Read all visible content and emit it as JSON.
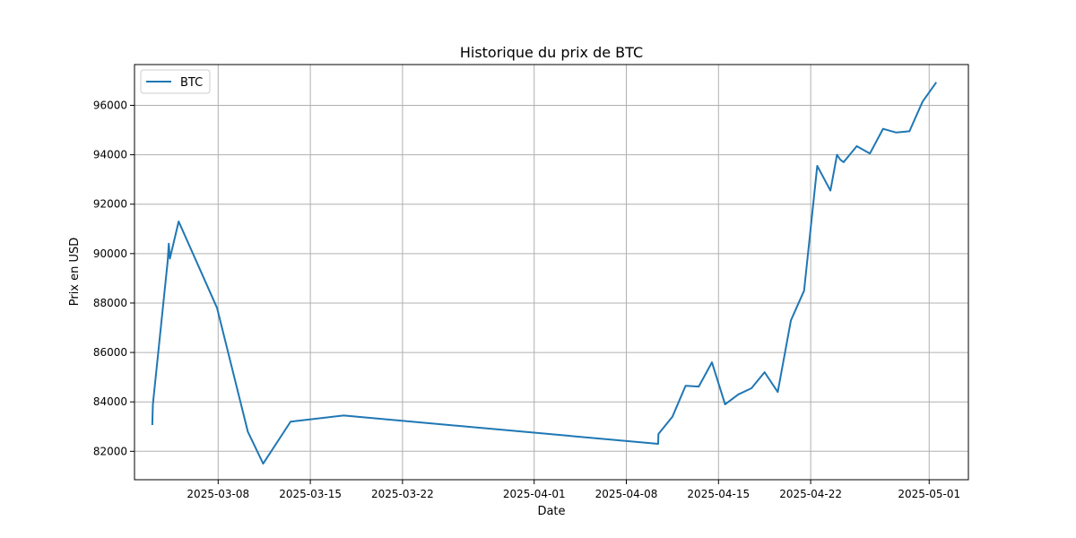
{
  "chart_data": {
    "type": "line",
    "title": "Historique du prix de BTC",
    "xlabel": "Date",
    "ylabel": "Prix en USD",
    "grid": true,
    "legend": {
      "placement": "top-left"
    },
    "xlim": [
      "2025-03-01T15:30",
      "2025-05-03T23:30"
    ],
    "ylim": [
      80850,
      97650
    ],
    "x_ticks": [
      "2025-03-08",
      "2025-03-15",
      "2025-03-22",
      "2025-04-01",
      "2025-04-08",
      "2025-04-15",
      "2025-04-22",
      "2025-05-01"
    ],
    "y_ticks": [
      82000,
      84000,
      86000,
      88000,
      90000,
      92000,
      94000,
      96000
    ],
    "series": [
      {
        "name": "BTC",
        "color": "#1f77b4",
        "points": [
          {
            "x": "2025-03-03T00:00",
            "y": 83100
          },
          {
            "x": "2025-03-03T01:00",
            "y": 83900
          },
          {
            "x": "2025-03-04T04:00",
            "y": 89700
          },
          {
            "x": "2025-03-04T06:00",
            "y": 90400
          },
          {
            "x": "2025-03-04T08:00",
            "y": 89800
          },
          {
            "x": "2025-03-05T00:00",
            "y": 91300
          },
          {
            "x": "2025-03-07T22:00",
            "y": 87800
          },
          {
            "x": "2025-03-10T06:00",
            "y": 82800
          },
          {
            "x": "2025-03-11T10:00",
            "y": 81500
          },
          {
            "x": "2025-03-13T12:00",
            "y": 83200
          },
          {
            "x": "2025-03-17T13:00",
            "y": 83450
          },
          {
            "x": "2025-04-10T10:00",
            "y": 82300
          },
          {
            "x": "2025-04-10T10:30",
            "y": 82700
          },
          {
            "x": "2025-04-11T12:00",
            "y": 83400
          },
          {
            "x": "2025-04-12T12:00",
            "y": 84650
          },
          {
            "x": "2025-04-13T12:00",
            "y": 84620
          },
          {
            "x": "2025-04-14T12:00",
            "y": 85600
          },
          {
            "x": "2025-04-15T12:00",
            "y": 83900
          },
          {
            "x": "2025-04-16T12:00",
            "y": 84300
          },
          {
            "x": "2025-04-17T12:00",
            "y": 84550
          },
          {
            "x": "2025-04-18T12:00",
            "y": 85200
          },
          {
            "x": "2025-04-19T12:00",
            "y": 84400
          },
          {
            "x": "2025-04-20T12:00",
            "y": 87300
          },
          {
            "x": "2025-04-21T12:00",
            "y": 88500
          },
          {
            "x": "2025-04-22T12:00",
            "y": 93550
          },
          {
            "x": "2025-04-23T12:00",
            "y": 92550
          },
          {
            "x": "2025-04-24T00:00",
            "y": 94000
          },
          {
            "x": "2025-04-24T06:00",
            "y": 93800
          },
          {
            "x": "2025-04-24T12:00",
            "y": 93700
          },
          {
            "x": "2025-04-25T12:00",
            "y": 94350
          },
          {
            "x": "2025-04-26T12:00",
            "y": 94050
          },
          {
            "x": "2025-04-27T12:00",
            "y": 95050
          },
          {
            "x": "2025-04-28T12:00",
            "y": 94900
          },
          {
            "x": "2025-04-29T12:00",
            "y": 94950
          },
          {
            "x": "2025-04-30T12:00",
            "y": 96150
          },
          {
            "x": "2025-05-01T12:00",
            "y": 96900
          }
        ]
      }
    ]
  }
}
